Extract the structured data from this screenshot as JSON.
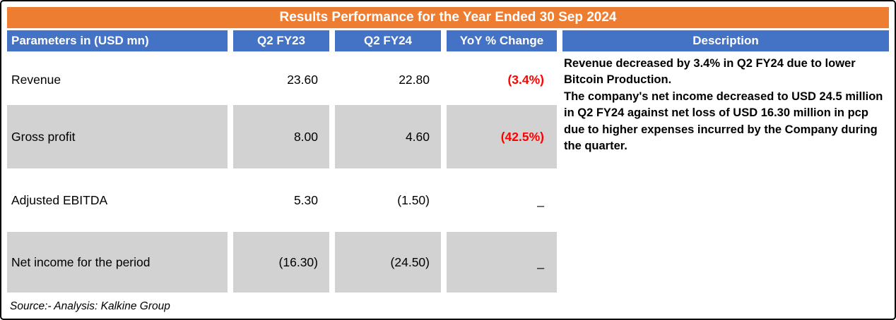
{
  "title": "Results Performance for the Year Ended 30 Sep 2024",
  "header": {
    "parameters": "Parameters in (USD mn)",
    "q2fy23": "Q2 FY23",
    "q2fy24": "Q2 FY24",
    "yoy": "YoY % Change",
    "description": "Description"
  },
  "table": {
    "rows": [
      {
        "parameter": "Revenue",
        "q2fy23": "23.60",
        "q2fy24": "22.80",
        "yoy": "(3.4%)",
        "negative": true,
        "shaded": false
      },
      {
        "parameter": "Gross profit",
        "q2fy23": "8.00",
        "q2fy24": "4.60",
        "yoy": "(42.5%)",
        "negative": true,
        "shaded": true
      },
      {
        "parameter": "Adjusted EBITDA",
        "q2fy23": "5.30",
        "q2fy24": "(1.50)",
        "yoy": "_",
        "negative": false,
        "shaded": false
      },
      {
        "parameter": "Net income for the period",
        "q2fy23": "(16.30)",
        "q2fy24": "(24.50)",
        "yoy": "_",
        "negative": false,
        "shaded": true
      }
    ]
  },
  "description": {
    "paragraphs": [
      "Revenue decreased  by 3.4% in Q2 FY24 due to lower Bitcoin Production.",
      "The company's  net income decreased to USD 24.5 million in  Q2 FY24  against net loss  of USD 16.30 million in pcp due to higher expenses incurred by the Company during the quarter."
    ]
  },
  "source": "Source:- Analysis: Kalkine Group",
  "colors": {
    "title_bg": "#ED7D31",
    "header_bg": "#4472C4",
    "shaded_row": "#D2D2D2",
    "negative": "#FF0000"
  },
  "chart_data": {
    "type": "table",
    "title": "Results Performance for the Year Ended 30 Sep 2024",
    "units": "USD mn",
    "columns": [
      "Parameters in (USD mn)",
      "Q2 FY23",
      "Q2 FY24",
      "YoY % Change"
    ],
    "rows": [
      [
        "Revenue",
        23.6,
        22.8,
        "-3.4%"
      ],
      [
        "Gross profit",
        8.0,
        4.6,
        "-42.5%"
      ],
      [
        "Adjusted EBITDA",
        5.3,
        -1.5,
        null
      ],
      [
        "Net income for the period",
        -16.3,
        -24.5,
        null
      ]
    ]
  }
}
